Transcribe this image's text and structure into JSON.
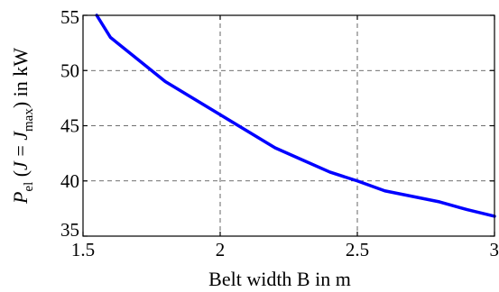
{
  "chart_data": {
    "type": "line",
    "xlabel": "Belt width B in m",
    "ylabel": {
      "symbol": "P",
      "symbol_sub": "el",
      "arg_open": " (",
      "arg_var": "J",
      "arg_eq": " = ",
      "arg_var2": "J",
      "arg_sub": "max",
      "arg_close": ")",
      "unit": " in kW"
    },
    "xlim": [
      1.5,
      3
    ],
    "ylim": [
      35,
      55
    ],
    "xticks": [
      1.5,
      2,
      2.5,
      3
    ],
    "xtick_labels": [
      "1.5",
      "2",
      "2.5",
      "3"
    ],
    "yticks": [
      35,
      40,
      45,
      50,
      55
    ],
    "ytick_labels": [
      "35",
      "40",
      "45",
      "50",
      "55"
    ],
    "grid": true,
    "line_color": "#0000ff",
    "series": [
      {
        "x": [
          1.55,
          1.6,
          1.7,
          1.8,
          1.9,
          2.0,
          2.1,
          2.2,
          2.3,
          2.4,
          2.5,
          2.6,
          2.7,
          2.8,
          2.9,
          3.0
        ],
        "y": [
          55.0,
          53.0,
          51.0,
          49.0,
          47.5,
          46.0,
          44.5,
          43.0,
          41.9,
          40.8,
          40.0,
          39.1,
          38.6,
          38.1,
          37.4,
          36.8
        ]
      }
    ]
  }
}
